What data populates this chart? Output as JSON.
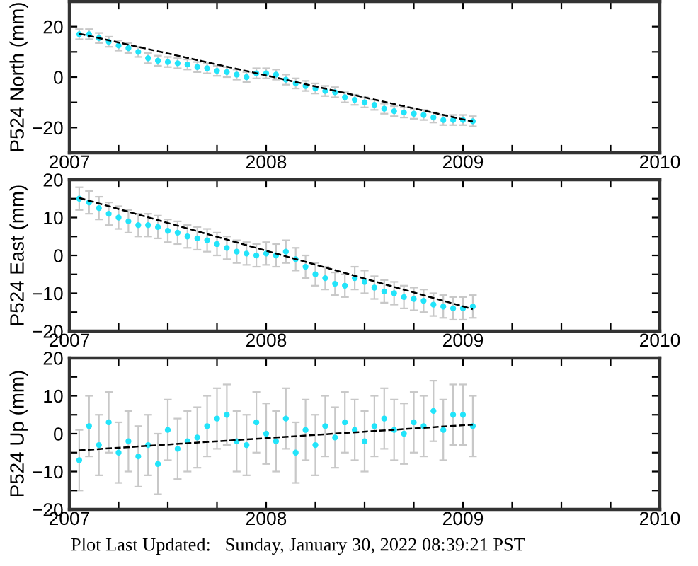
{
  "chart_data": [
    {
      "type": "scatter",
      "ylabel": "P524 North (mm)",
      "xlim": [
        2007,
        2010
      ],
      "xticks": [
        2007,
        {
          "value": 2007.25,
          "label": null
        },
        {
          "value": 2007.5,
          "label": null
        },
        {
          "value": 2007.75,
          "label": null
        },
        2008,
        {
          "value": 2008.25,
          "label": null
        },
        {
          "value": 2008.5,
          "label": null
        },
        {
          "value": 2008.75,
          "label": null
        },
        2009,
        {
          "value": 2009.25,
          "label": null
        },
        {
          "value": 2009.5,
          "label": null
        },
        {
          "value": 2009.75,
          "label": null
        },
        2010
      ],
      "ylim": [
        -30,
        30
      ],
      "yticks": [
        -20,
        {
          "value": -10,
          "label": null
        },
        0,
        {
          "value": 10,
          "label": null
        },
        20
      ],
      "grid": false,
      "x": [
        2007.05,
        2007.1,
        2007.15,
        2007.2,
        2007.25,
        2007.3,
        2007.35,
        2007.4,
        2007.45,
        2007.5,
        2007.55,
        2007.6,
        2007.65,
        2007.7,
        2007.75,
        2007.8,
        2007.85,
        2007.9,
        2007.95,
        2008.0,
        2008.05,
        2008.1,
        2008.15,
        2008.2,
        2008.25,
        2008.3,
        2008.35,
        2008.4,
        2008.45,
        2008.5,
        2008.55,
        2008.6,
        2008.65,
        2008.7,
        2008.75,
        2008.8,
        2008.85,
        2008.9,
        2008.95,
        2009.0,
        2009.05
      ],
      "series": [
        {
          "color": "#22e4fa",
          "marker": "circle",
          "values": [
            17,
            17,
            15.5,
            14,
            12.5,
            11.5,
            10,
            7.5,
            6.5,
            6,
            5.5,
            5,
            4,
            3.5,
            2.5,
            2,
            1,
            0,
            1.5,
            1.5,
            1,
            -1,
            -2.5,
            -3.5,
            -4.5,
            -5.5,
            -6,
            -8,
            -9,
            -10,
            -11,
            -12.5,
            -13.5,
            -14,
            -14.5,
            -15,
            -16,
            -17,
            -17,
            -17,
            -17.5
          ],
          "errors": [
            2,
            2,
            2,
            2,
            2,
            2,
            2,
            2,
            2,
            2,
            2,
            2,
            2,
            2,
            2,
            2,
            2,
            2,
            2,
            2,
            2,
            2,
            2,
            2,
            2,
            2,
            2,
            2,
            2,
            2,
            2,
            2,
            2,
            2,
            2,
            2,
            2,
            2,
            2,
            2,
            2
          ]
        },
        {
          "type": "line",
          "color": "#000000",
          "line_style": "dashed",
          "marker": "none",
          "x": [
            2007.05,
            2008.05,
            2009.05
          ],
          "values": [
            17.2,
            -0.2,
            -17.6
          ]
        }
      ]
    },
    {
      "type": "scatter",
      "ylabel": "P524 East (mm)",
      "xlim": [
        2007,
        2010
      ],
      "xticks": [
        2007,
        {
          "value": 2007.25,
          "label": null
        },
        {
          "value": 2007.5,
          "label": null
        },
        {
          "value": 2007.75,
          "label": null
        },
        2008,
        {
          "value": 2008.25,
          "label": null
        },
        {
          "value": 2008.5,
          "label": null
        },
        {
          "value": 2008.75,
          "label": null
        },
        2009,
        {
          "value": 2009.25,
          "label": null
        },
        {
          "value": 2009.5,
          "label": null
        },
        {
          "value": 2009.75,
          "label": null
        },
        2010
      ],
      "ylim": [
        -20,
        20
      ],
      "yticks": [
        -20,
        {
          "value": -15,
          "label": null
        },
        -10,
        {
          "value": -5,
          "label": null
        },
        0,
        {
          "value": 5,
          "label": null
        },
        10,
        {
          "value": 15,
          "label": null
        },
        20
      ],
      "grid": false,
      "x": [
        2007.05,
        2007.1,
        2007.15,
        2007.2,
        2007.25,
        2007.3,
        2007.35,
        2007.4,
        2007.45,
        2007.5,
        2007.55,
        2007.6,
        2007.65,
        2007.7,
        2007.75,
        2007.8,
        2007.85,
        2007.9,
        2007.95,
        2008.0,
        2008.05,
        2008.1,
        2008.15,
        2008.2,
        2008.25,
        2008.3,
        2008.35,
        2008.4,
        2008.45,
        2008.5,
        2008.55,
        2008.6,
        2008.65,
        2008.7,
        2008.75,
        2008.8,
        2008.85,
        2008.9,
        2008.95,
        2009.0,
        2009.05
      ],
      "series": [
        {
          "color": "#22e4fa",
          "marker": "circle",
          "values": [
            15,
            14,
            12.5,
            11,
            10,
            9,
            8,
            8,
            7.5,
            6.5,
            6,
            5,
            4.5,
            4,
            3,
            2,
            1,
            0.5,
            0,
            0.5,
            0,
            1,
            -1,
            -3,
            -5,
            -6,
            -7.5,
            -8,
            -6,
            -7,
            -8.5,
            -9.5,
            -10,
            -11,
            -11.5,
            -12,
            -13,
            -13.5,
            -14,
            -14,
            -13.5
          ],
          "errors": [
            3,
            3,
            3,
            3,
            3,
            3,
            3,
            3,
            3,
            3,
            3,
            3,
            3,
            3,
            3,
            3,
            3,
            3,
            3,
            3,
            3,
            3,
            3,
            3,
            3,
            3,
            3,
            3,
            3,
            3,
            3,
            3,
            3,
            3,
            3,
            3,
            3,
            3,
            3,
            3,
            3
          ]
        },
        {
          "type": "line",
          "color": "#000000",
          "line_style": "dashed",
          "marker": "none",
          "x": [
            2007.05,
            2008.05,
            2009.05
          ],
          "values": [
            15.2,
            0.5,
            -14.2
          ]
        }
      ]
    },
    {
      "type": "scatter",
      "ylabel": "P524 Up (mm)",
      "xlim": [
        2007,
        2010
      ],
      "xticks": [
        2007,
        {
          "value": 2007.25,
          "label": null
        },
        {
          "value": 2007.5,
          "label": null
        },
        {
          "value": 2007.75,
          "label": null
        },
        2008,
        {
          "value": 2008.25,
          "label": null
        },
        {
          "value": 2008.5,
          "label": null
        },
        {
          "value": 2008.75,
          "label": null
        },
        2009,
        {
          "value": 2009.25,
          "label": null
        },
        {
          "value": 2009.5,
          "label": null
        },
        {
          "value": 2009.75,
          "label": null
        },
        2010
      ],
      "ylim": [
        -20,
        20
      ],
      "yticks": [
        -20,
        {
          "value": -15,
          "label": null
        },
        -10,
        {
          "value": -5,
          "label": null
        },
        0,
        {
          "value": 5,
          "label": null
        },
        10,
        {
          "value": 15,
          "label": null
        },
        20
      ],
      "grid": false,
      "x": [
        2007.05,
        2007.1,
        2007.15,
        2007.2,
        2007.25,
        2007.3,
        2007.35,
        2007.4,
        2007.45,
        2007.5,
        2007.55,
        2007.6,
        2007.65,
        2007.7,
        2007.75,
        2007.8,
        2007.85,
        2007.9,
        2007.95,
        2008.0,
        2008.05,
        2008.1,
        2008.15,
        2008.2,
        2008.25,
        2008.3,
        2008.35,
        2008.4,
        2008.45,
        2008.5,
        2008.55,
        2008.6,
        2008.65,
        2008.7,
        2008.75,
        2008.8,
        2008.85,
        2008.9,
        2008.95,
        2009.0,
        2009.05
      ],
      "series": [
        {
          "color": "#22e4fa",
          "marker": "circle",
          "values": [
            -7,
            2,
            -3,
            3,
            -5,
            -2,
            -6,
            -3,
            -8,
            1,
            -4,
            -2,
            -1,
            2,
            4,
            5,
            -2,
            -3,
            3,
            0,
            -2,
            4,
            -5,
            1,
            -3,
            2,
            -1,
            3,
            1,
            -2,
            2,
            4,
            1,
            0,
            3,
            2,
            6,
            1,
            5,
            5,
            2
          ],
          "errors": [
            8,
            8,
            8,
            8,
            8,
            8,
            8,
            8,
            8,
            8,
            8,
            8,
            8,
            8,
            8,
            8,
            8,
            8,
            8,
            8,
            8,
            8,
            8,
            8,
            8,
            8,
            8,
            8,
            8,
            8,
            8,
            8,
            8,
            8,
            8,
            8,
            8,
            8,
            8,
            8,
            8
          ]
        },
        {
          "type": "line",
          "color": "#000000",
          "line_style": "dashed",
          "marker": "none",
          "x": [
            2007.05,
            2008.05,
            2009.05
          ],
          "values": [
            -4.4,
            -1,
            2.4
          ]
        }
      ],
      "annotations": [
        "Plot Last Updated:   Sunday, January 30, 2022 08:39:21 PST"
      ]
    }
  ]
}
